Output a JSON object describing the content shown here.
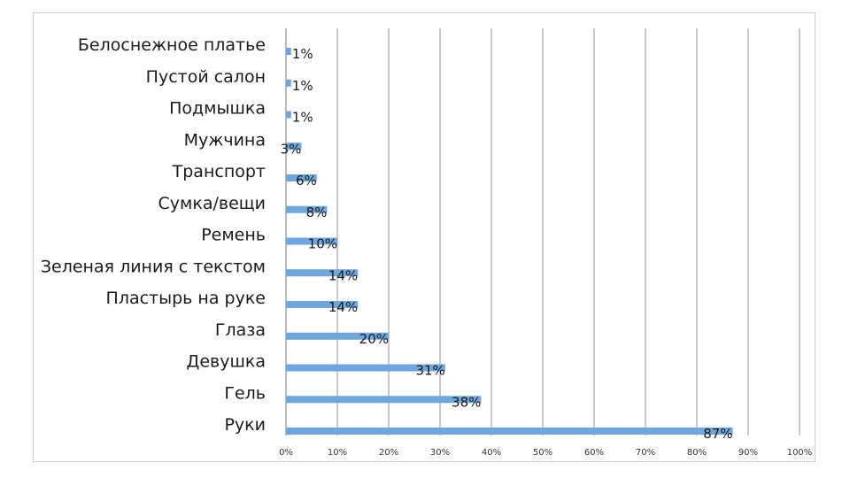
{
  "chart_data": {
    "type": "bar",
    "orientation": "horizontal",
    "categories": [
      "Белоснежное платье",
      "Пустой салон",
      "Подмышка",
      "Мужчина",
      "Транспорт",
      "Сумка/вещи",
      "Ремень",
      "Зеленая линия с текстом",
      "Пластырь на руке",
      "Глаза",
      "Девушка",
      "Гель",
      "Руки"
    ],
    "values": [
      1,
      1,
      1,
      3,
      6,
      8,
      10,
      14,
      14,
      20,
      31,
      38,
      87
    ],
    "data_labels": [
      "1%",
      "1%",
      "1%",
      "3%",
      "6%",
      "8%",
      "10%",
      "14%",
      "14%",
      "20%",
      "31%",
      "38%",
      "87%"
    ],
    "xlim": [
      0,
      100
    ],
    "x_ticks": [
      0,
      10,
      20,
      30,
      40,
      50,
      60,
      70,
      80,
      90,
      100
    ],
    "x_tick_labels": [
      "0%",
      "10%",
      "20%",
      "30%",
      "40%",
      "50%",
      "60%",
      "70%",
      "80%",
      "90%",
      "100%"
    ],
    "grid": "vertical",
    "legend": "none",
    "title": "",
    "xlabel": "",
    "ylabel": "",
    "colors": {
      "bar": "#6fa6dc",
      "grid": "#7a7a7a",
      "axis": "#8c8c8c"
    }
  }
}
